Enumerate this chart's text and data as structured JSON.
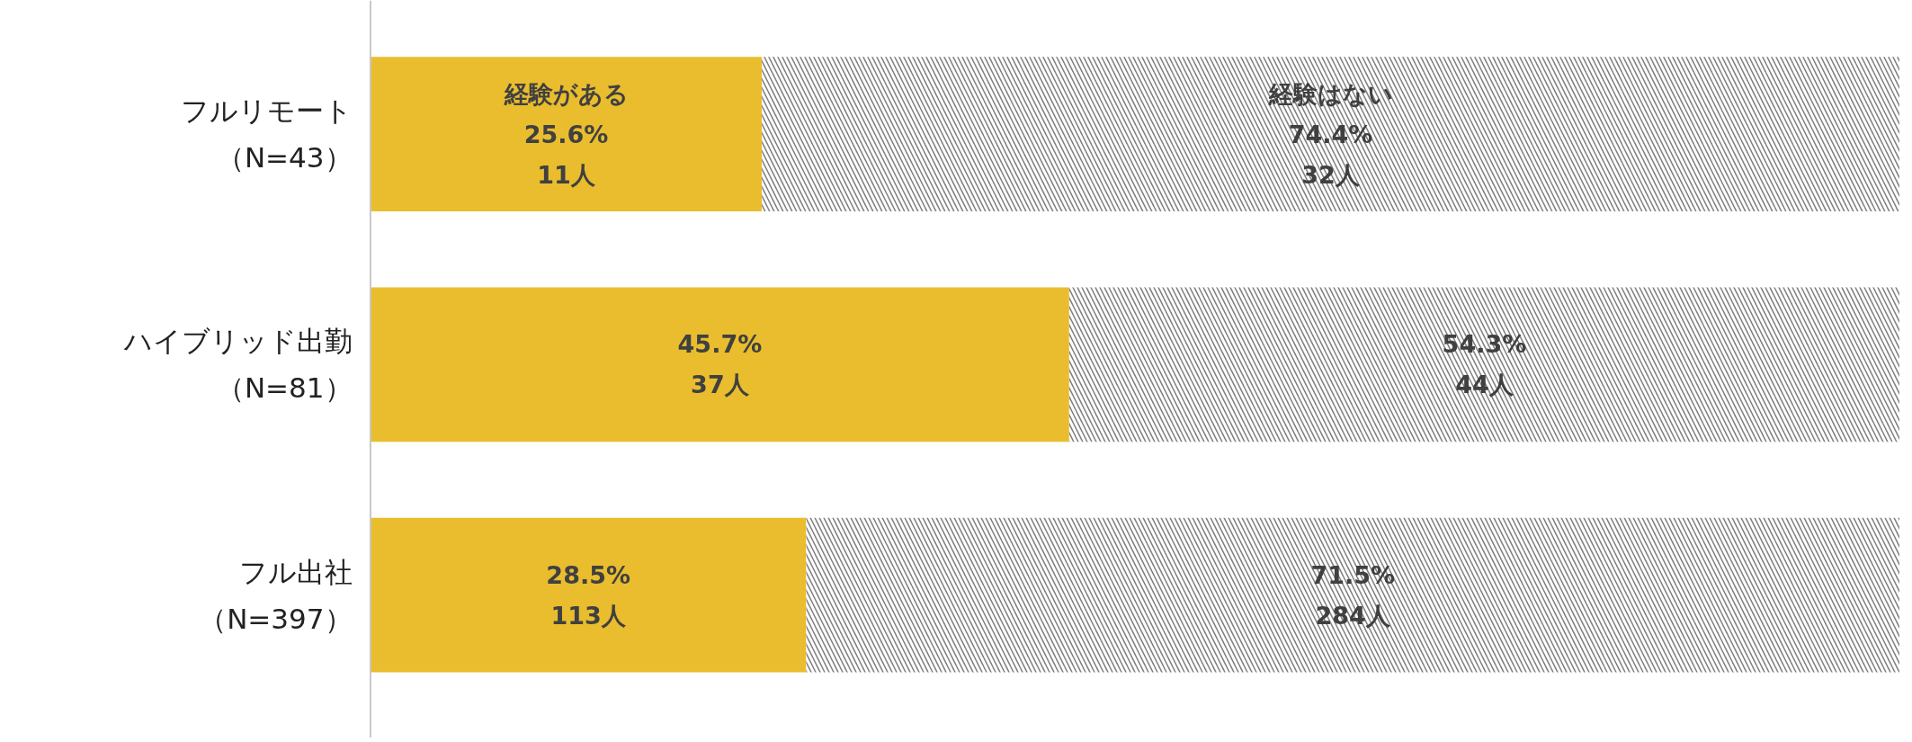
{
  "chart_data": {
    "type": "bar",
    "orientation": "horizontal",
    "stacked": true,
    "tick_labels": "y",
    "grid": false,
    "categories": [
      "フルリモート（N=43）",
      "ハイブリッド出勤（N=81）",
      "フル出社（N=397）"
    ],
    "series": [
      {
        "name": "経験がある",
        "color": "#e9bd2e",
        "values": [
          25.6,
          45.7,
          28.5
        ],
        "value_labels": [
          "25.6%\n11人",
          "45.7%\n37人",
          "28.5%\n113人"
        ]
      },
      {
        "name": "経験はない",
        "color": "#7f7f7f",
        "values": [
          74.4,
          54.3,
          71.5
        ],
        "value_labels": [
          "74.4%\n32人",
          "54.3%\n44人",
          "71.5%\n284人"
        ]
      }
    ]
  }
}
